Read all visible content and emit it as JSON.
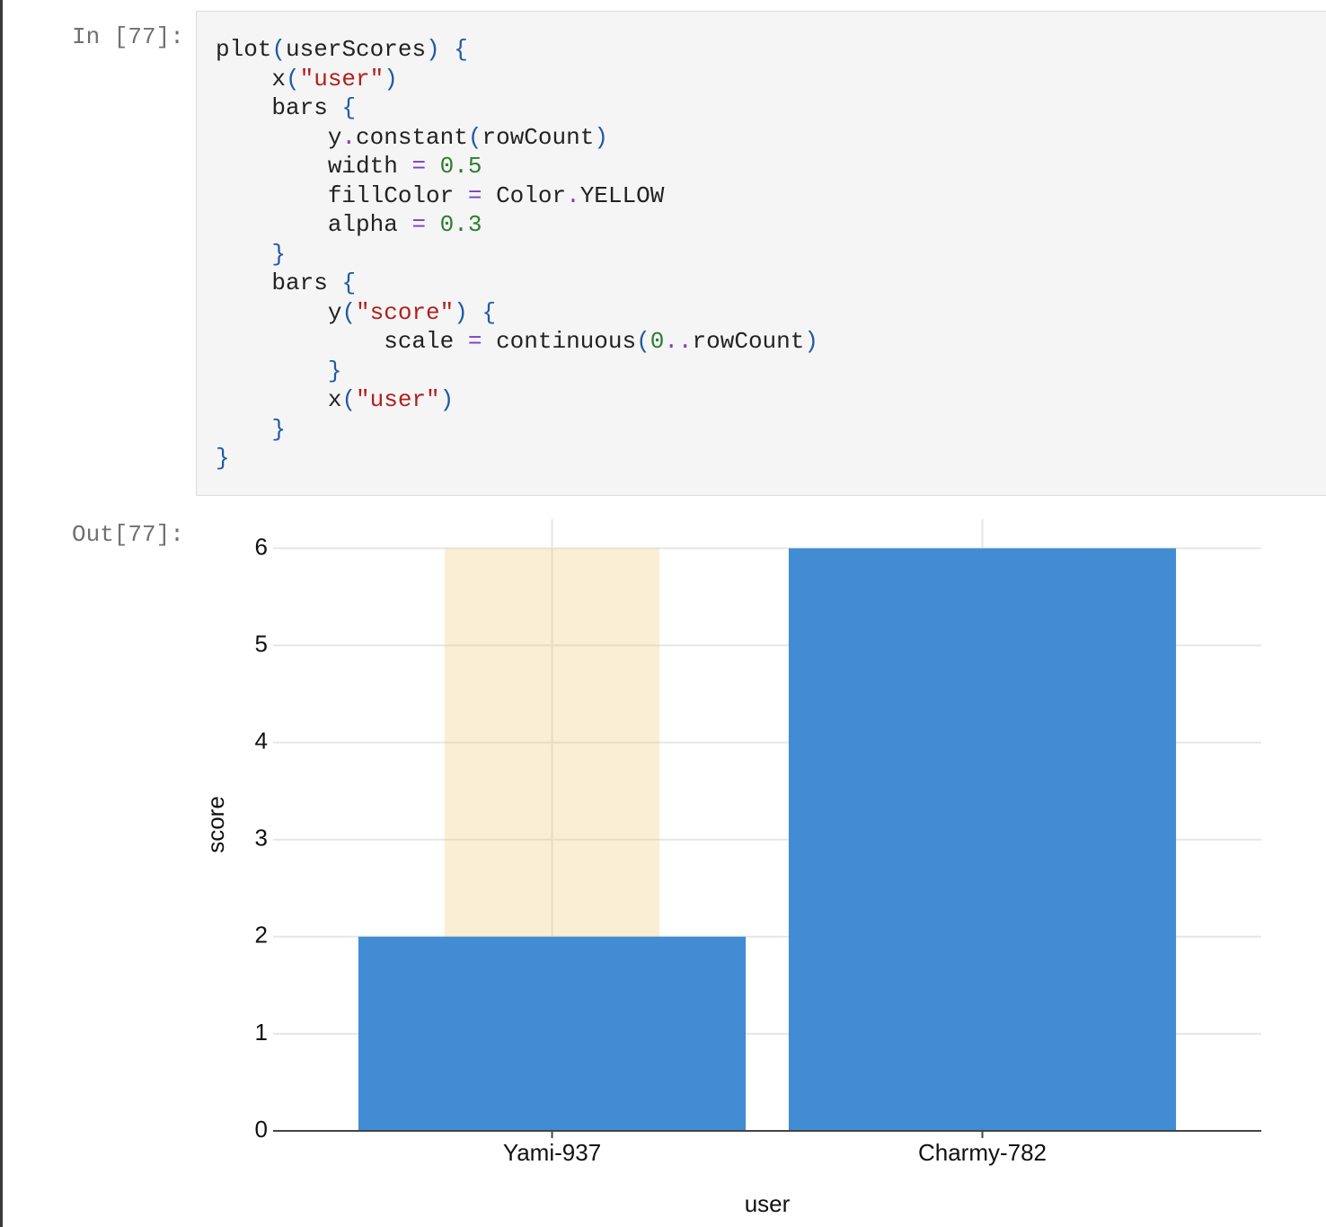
{
  "cell": {
    "prompt_in": "In [77]:",
    "code": [
      "plot(userScores) {",
      "    x(\"user\")",
      "    bars {",
      "        y.constant(rowCount)",
      "        width = 0.5",
      "        fillColor = Color.YELLOW",
      "        alpha = 0.3",
      "    }",
      "    bars {",
      "        y(\"score\") {",
      "            scale = continuous(0..rowCount)",
      "        }",
      "        x(\"user\")",
      "    }",
      "}"
    ],
    "prompt_out": "Out[77]:"
  },
  "chart_data": {
    "type": "bar",
    "x_label": "user",
    "y_label": "score",
    "categories": [
      "Yami-937",
      "Charmy-782"
    ],
    "series": [
      {
        "color": "#eeca73",
        "alpha": 0.3,
        "width": 0.5,
        "values": [
          6,
          6
        ]
      },
      {
        "color": "#418cd2",
        "alpha": 1,
        "width": 0.9,
        "values": [
          2,
          6
        ]
      }
    ],
    "ylim": [
      0,
      6.3
    ],
    "yticks": [
      0,
      1,
      2,
      3,
      4,
      5,
      6
    ],
    "grid": true
  }
}
